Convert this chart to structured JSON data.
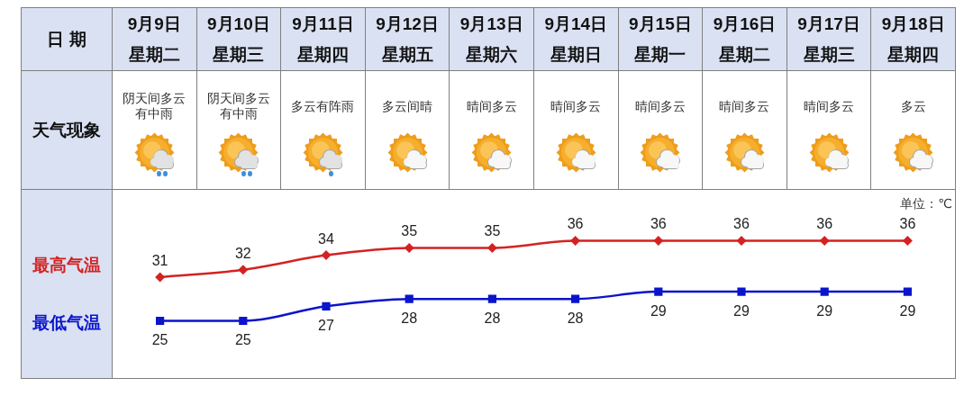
{
  "chart_data": {
    "type": "line",
    "xlabel": "日 期",
    "categories": [
      "9月9日星期二",
      "9月10日星期三",
      "9月11日星期四",
      "9月12日星期五",
      "9月13日星期六",
      "9月14日星期日",
      "9月15日星期一",
      "9月16日星期二",
      "9月17日星期三",
      "9月18日星期四"
    ],
    "series": [
      {
        "name": "最高气温",
        "color": "#d42222",
        "marker": "diamond",
        "values": [
          31,
          32,
          34,
          35,
          35,
          36,
          36,
          36,
          36,
          36
        ]
      },
      {
        "name": "最低气温",
        "color": "#0a14cc",
        "marker": "square",
        "values": [
          25,
          25,
          27,
          28,
          28,
          28,
          29,
          29,
          29,
          29
        ]
      }
    ],
    "data_labels": true,
    "annotations": [
      "天气现象",
      "阴天间多云有中雨",
      "阴天间多云有中雨",
      "多云有阵雨",
      "多云间晴",
      "晴间多云",
      "晴间多云",
      "晴间多云",
      "晴间多云",
      "晴间多云",
      "多云",
      "单位：℃"
    ]
  }
}
